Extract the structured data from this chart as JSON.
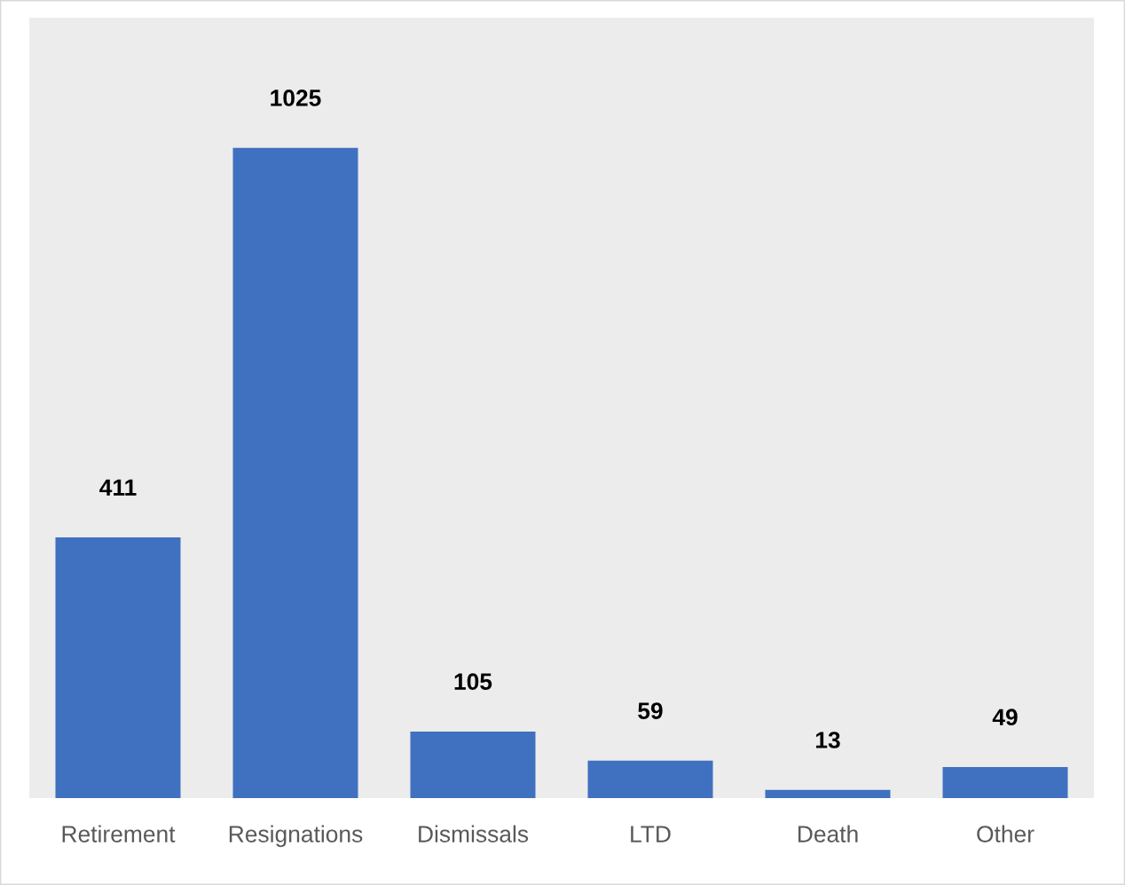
{
  "chart_data": {
    "type": "bar",
    "categories": [
      "Retirement",
      "Resignations",
      "Dismissals",
      "LTD",
      "Death",
      "Other"
    ],
    "values": [
      411,
      1025,
      105,
      59,
      13,
      49
    ],
    "color": "#4070c0",
    "data_labels": true,
    "grid": false,
    "legend": false
  }
}
